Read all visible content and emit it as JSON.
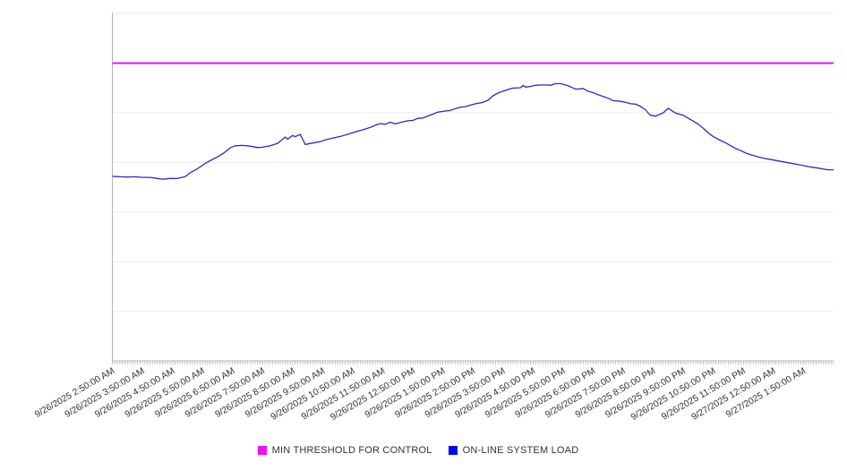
{
  "chart_data": {
    "type": "line",
    "title": "",
    "x_axis": {
      "tick_labels": [
        "9/26/2025 2:50:00 AM",
        "9/26/2025 3:50:00 AM",
        "9/26/2025 4:50:00 AM",
        "9/26/2025 5:50:00 AM",
        "9/26/2025 6:50:00 AM",
        "9/26/2025 7:50:00 AM",
        "9/26/2025 8:50:00 AM",
        "9/26/2025 9:50:00 AM",
        "9/26/2025 10:50:00 AM",
        "9/26/2025 11:50:00 AM",
        "9/26/2025 12:50:00 PM",
        "9/26/2025 1:50:00 PM",
        "9/26/2025 2:50:00 PM",
        "9/26/2025 3:50:00 PM",
        "9/26/2025 4:50:00 PM",
        "9/26/2025 5:50:00 PM",
        "9/26/2025 6:50:00 PM",
        "9/26/2025 7:50:00 PM",
        "9/26/2025 8:50:00 PM",
        "9/26/2025 9:50:00 PM",
        "9/26/2025 10:50:00 PM",
        "9/26/2025 11:50:00 PM",
        "9/27/2025 12:50:00 AM",
        "9/27/2025 1:50:00 AM"
      ],
      "label_interval_minutes": 60,
      "minor_tick_interval_minutes": 5,
      "total_minutes": 1440,
      "label_rotation_deg": -30
    },
    "y_axis": {
      "tick_labels_visible": false,
      "normalized_range": [
        0,
        100
      ],
      "gridline_count": 8
    },
    "grid": {
      "horizontal": true,
      "vertical": false
    },
    "legend_position": "bottom-center",
    "series": [
      {
        "name": "MIN THRESHOLD FOR CONTROL",
        "type": "threshold-line",
        "color": "#ee10ee",
        "value": 85.7
      },
      {
        "name": "ON-LINE SYSTEM LOAD",
        "type": "line",
        "color": "#2a2acc",
        "minutes": [
          0,
          15,
          30,
          45,
          60,
          75,
          90,
          100,
          115,
          130,
          145,
          155,
          170,
          185,
          200,
          215,
          225,
          235,
          245,
          260,
          275,
          290,
          300,
          315,
          330,
          345,
          350,
          360,
          365,
          375,
          385,
          400,
          415,
          425,
          440,
          455,
          470,
          485,
          500,
          515,
          525,
          535,
          545,
          555,
          565,
          575,
          590,
          600,
          610,
          620,
          630,
          640,
          650,
          665,
          675,
          685,
          695,
          705,
          715,
          725,
          740,
          750,
          760,
          770,
          780,
          790,
          800,
          815,
          820,
          825,
          835,
          845,
          855,
          865,
          875,
          885,
          895,
          905,
          915,
          925,
          940,
          950,
          960,
          970,
          980,
          990,
          1000,
          1015,
          1025,
          1035,
          1045,
          1055,
          1065,
          1070,
          1075,
          1085,
          1090,
          1100,
          1110,
          1115,
          1125,
          1140,
          1150,
          1160,
          1170,
          1180,
          1190,
          1200,
          1215,
          1225,
          1235,
          1245,
          1255,
          1265,
          1275,
          1290,
          1305,
          1320,
          1335,
          1350,
          1365,
          1380,
          1390,
          1405,
          1420,
          1430,
          1440
        ],
        "values": [
          53.1,
          53.0,
          52.9,
          53.0,
          52.8,
          52.8,
          52.5,
          52.3,
          52.5,
          52.5,
          53.0,
          54.1,
          55.3,
          56.8,
          58.0,
          59.1,
          60.1,
          61.3,
          61.9,
          62.0,
          61.8,
          61.4,
          61.5,
          61.9,
          62.6,
          64.4,
          63.8,
          64.9,
          64.5,
          65.2,
          62.3,
          62.7,
          63.1,
          63.6,
          64.1,
          64.6,
          65.2,
          65.9,
          66.5,
          67.2,
          67.8,
          68.3,
          68.1,
          68.7,
          68.2,
          68.6,
          69.1,
          69.2,
          69.8,
          69.9,
          70.5,
          71.0,
          71.6,
          71.9,
          72.1,
          72.6,
          73.0,
          73.2,
          73.6,
          74.0,
          74.4,
          75.0,
          76.3,
          77.1,
          77.6,
          78.1,
          78.5,
          78.6,
          79.3,
          78.8,
          79.0,
          79.3,
          79.4,
          79.4,
          79.3,
          79.8,
          79.8,
          79.4,
          78.9,
          78.2,
          78.4,
          77.6,
          77.2,
          76.6,
          76.1,
          75.6,
          74.9,
          74.7,
          74.4,
          74.0,
          73.9,
          73.2,
          72.2,
          71.3,
          70.7,
          70.4,
          70.8,
          71.4,
          72.7,
          72.2,
          71.3,
          70.7,
          69.8,
          69.0,
          68.1,
          66.9,
          65.6,
          64.5,
          63.4,
          62.7,
          61.9,
          61.1,
          60.5,
          59.8,
          59.3,
          58.7,
          58.2,
          57.8,
          57.4,
          57.0,
          56.6,
          56.2,
          55.9,
          55.6,
          55.2,
          55.0,
          55.0
        ]
      }
    ],
    "colors": {
      "gridline": "#ebebeb",
      "axis": "#b5b5b5",
      "minor_tick": "#a8a8a8",
      "axis_label_text": "#333333",
      "background": "#ffffff"
    }
  },
  "legend": {
    "threshold_label": "MIN THRESHOLD FOR CONTROL",
    "load_label": "ON-LINE SYSTEM LOAD"
  }
}
